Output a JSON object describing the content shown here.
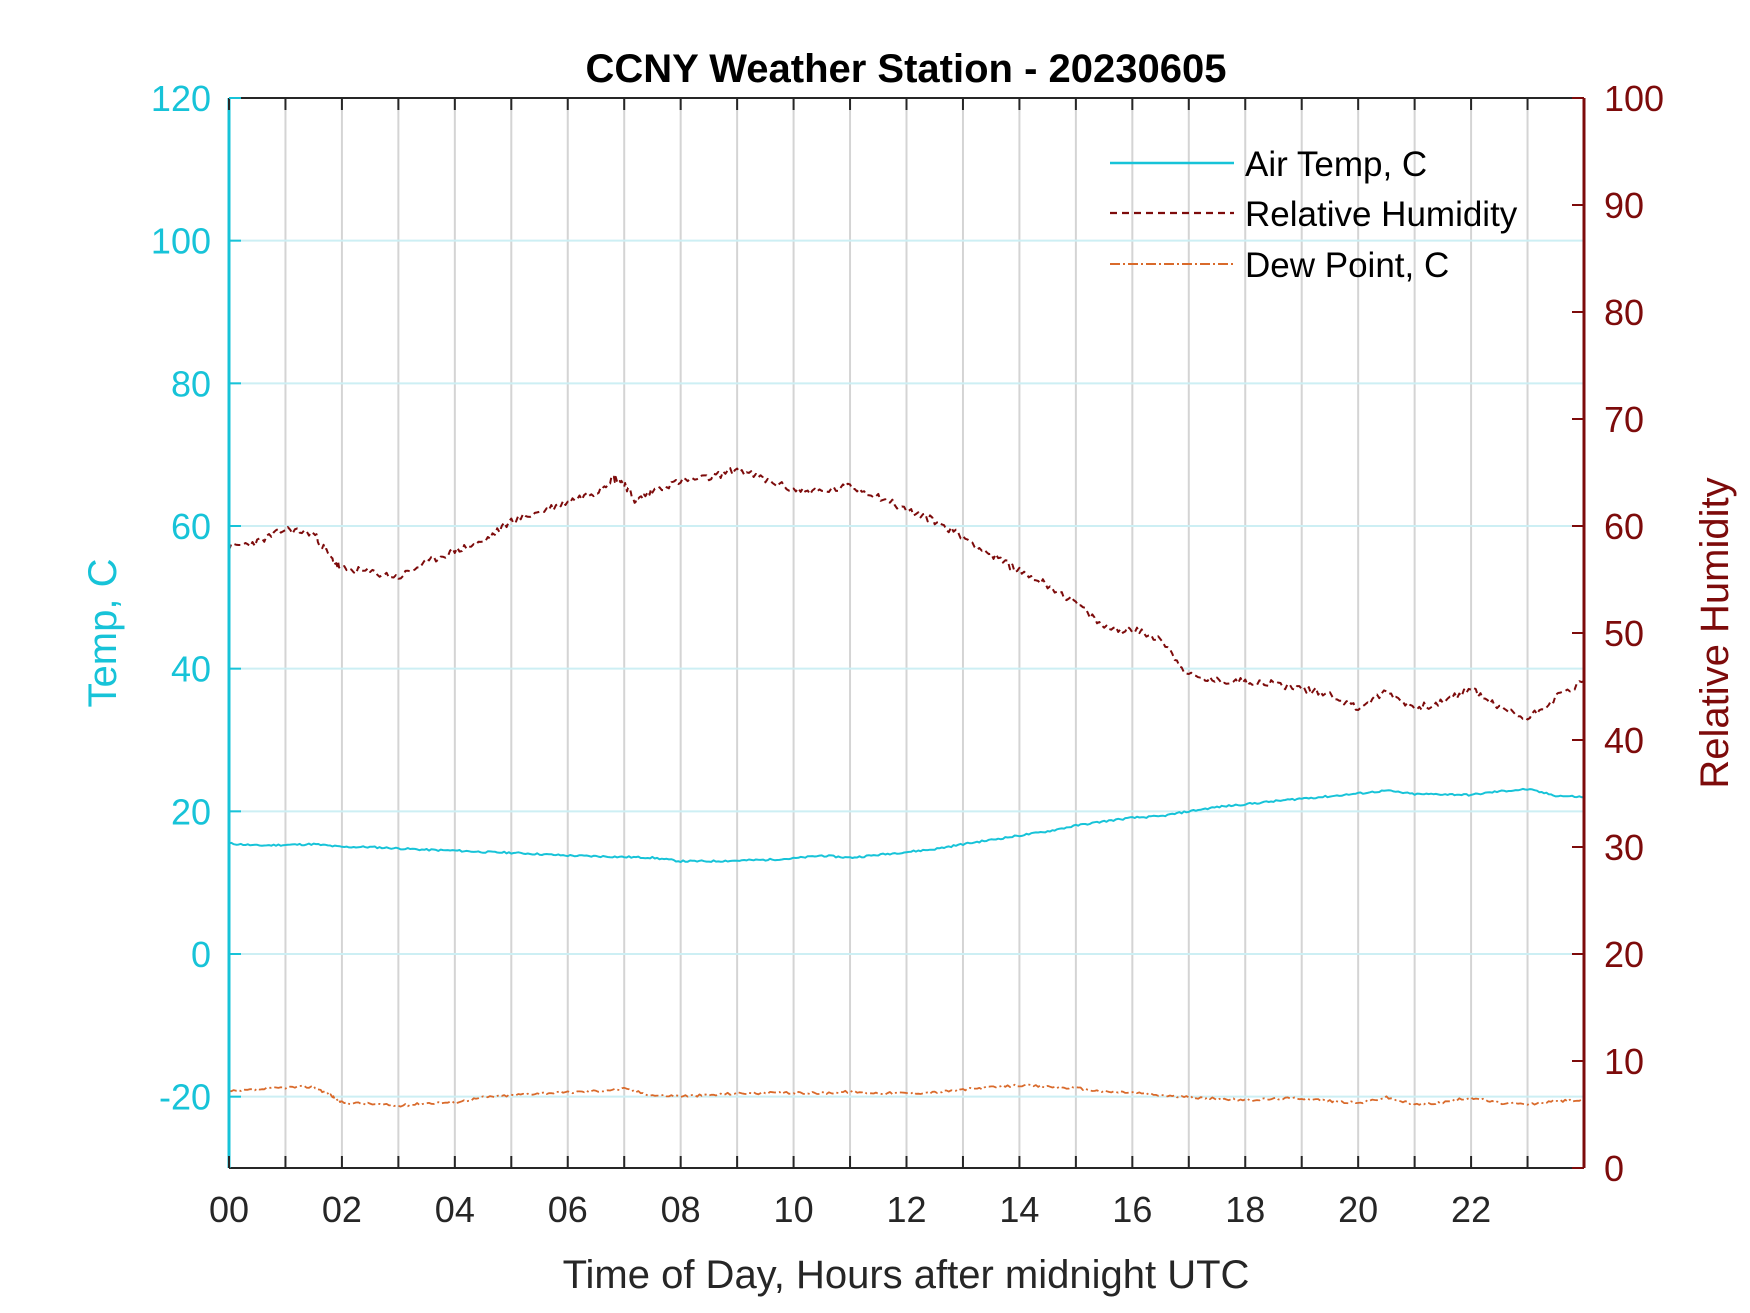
{
  "chart_data": {
    "type": "line",
    "title": "CCNY Weather Station - 20230605",
    "xlabel": "Time of Day, Hours after midnight UTC",
    "ylabel_left": "Temp, C",
    "ylabel_right": "Relative Humidity",
    "xlim": [
      0,
      24
    ],
    "ylim_left": [
      -30,
      120
    ],
    "ylim_right": [
      0,
      100
    ],
    "x_ticks": [
      0,
      2,
      4,
      6,
      8,
      10,
      12,
      14,
      16,
      18,
      20,
      22
    ],
    "x_tick_labels": [
      "00",
      "02",
      "04",
      "06",
      "08",
      "10",
      "12",
      "14",
      "16",
      "18",
      "20",
      "22"
    ],
    "y_left_ticks": [
      -20,
      0,
      20,
      40,
      60,
      80,
      100,
      120
    ],
    "y_left_tick_labels": [
      "-20",
      "0",
      "20",
      "40",
      "60",
      "80",
      "100",
      "120"
    ],
    "y_right_ticks": [
      0,
      10,
      20,
      30,
      40,
      50,
      60,
      70,
      80,
      90,
      100
    ],
    "y_right_tick_labels": [
      "0",
      "10",
      "20",
      "30",
      "40",
      "50",
      "60",
      "70",
      "80",
      "90",
      "100"
    ],
    "grid": "vertical lines every hour, horizontal lines at left-axis ticks",
    "legend_position": "top-right",
    "colors": {
      "left_axis": "#17c3d8",
      "right_axis": "#7d0b0b",
      "air_temp": "#17c3d8",
      "humidity": "#7d0b0b",
      "dew_point": "#d96a2b",
      "grid_vertical": "#d4d4d4",
      "grid_horizontal": "#cdeff4"
    },
    "series": [
      {
        "name": "Air Temp, C",
        "axis": "left",
        "style": "solid",
        "x": [
          0,
          0.5,
          1,
          1.5,
          2,
          2.5,
          3,
          3.5,
          4,
          4.5,
          5,
          5.5,
          6,
          6.5,
          7,
          7.5,
          8,
          8.5,
          9,
          9.5,
          10,
          10.5,
          11,
          11.5,
          12,
          12.5,
          13,
          13.5,
          14,
          14.5,
          15,
          15.5,
          16,
          16.5,
          17,
          17.5,
          18,
          18.5,
          19,
          19.5,
          20,
          20.5,
          21,
          21.5,
          22,
          22.5,
          23,
          23.5,
          24
        ],
        "values": [
          15.5,
          15.2,
          15.3,
          15.4,
          15.0,
          15.0,
          14.8,
          14.6,
          14.5,
          14.3,
          14.2,
          14.0,
          13.8,
          13.7,
          13.6,
          13.5,
          13.0,
          13.0,
          13.1,
          13.2,
          13.4,
          13.8,
          13.5,
          13.9,
          14.3,
          14.7,
          15.4,
          16.0,
          16.6,
          17.2,
          18.0,
          18.6,
          19.1,
          19.3,
          20.0,
          20.6,
          21.0,
          21.4,
          21.8,
          22.1,
          22.5,
          22.9,
          22.4,
          22.4,
          22.3,
          22.8,
          23.1,
          22.2,
          22.0
        ]
      },
      {
        "name": "Relative Humidity",
        "axis": "right",
        "style": "dashed",
        "x": [
          0,
          0.5,
          1,
          1.5,
          1.8,
          2,
          2.5,
          3,
          3.5,
          4,
          4.5,
          5,
          5.5,
          6,
          6.5,
          6.8,
          7,
          7.2,
          7.5,
          8,
          8.5,
          9,
          9.5,
          10,
          10.5,
          11,
          11.5,
          12,
          12.5,
          13,
          13.5,
          14,
          14.5,
          15,
          15.5,
          16,
          16.5,
          17,
          17.5,
          18,
          18.5,
          19,
          19.5,
          20,
          20.5,
          21,
          21.5,
          22,
          22.5,
          23,
          23.5,
          24
        ],
        "values": [
          58.0,
          58.5,
          59.7,
          59.3,
          57.0,
          56.0,
          55.7,
          55.2,
          56.6,
          57.7,
          58.5,
          60.5,
          61.3,
          62.3,
          63.2,
          64.5,
          64.0,
          62.3,
          63.3,
          64.2,
          64.5,
          65.3,
          64.3,
          63.4,
          63.2,
          63.7,
          62.8,
          61.5,
          60.5,
          59.0,
          57.3,
          55.8,
          54.5,
          52.8,
          50.5,
          50.3,
          49.5,
          46.0,
          45.5,
          45.5,
          45.3,
          44.8,
          44.3,
          43.0,
          44.5,
          43.0,
          43.5,
          44.8,
          43.0,
          42.0,
          44.0,
          45.5
        ]
      },
      {
        "name": "Dew Point, C",
        "axis": "left",
        "style": "dash-dot",
        "x": [
          0,
          0.5,
          1,
          1.5,
          1.8,
          2,
          2.5,
          3,
          3.5,
          4,
          4.5,
          5,
          5.5,
          6,
          6.5,
          7,
          7.5,
          8,
          8.5,
          9,
          9.5,
          10,
          10.5,
          11,
          11.5,
          12,
          12.5,
          13,
          13.5,
          14,
          14.5,
          15,
          15.5,
          16,
          16.5,
          17,
          17.5,
          18,
          18.5,
          19,
          19.5,
          20,
          20.5,
          21,
          21.5,
          22,
          22.5,
          23,
          23.5,
          24
        ],
        "values": [
          -19.3,
          -19.0,
          -18.7,
          -18.6,
          -19.8,
          -20.8,
          -21.0,
          -21.3,
          -20.9,
          -20.8,
          -20.1,
          -19.8,
          -19.5,
          -19.4,
          -19.2,
          -18.9,
          -19.8,
          -19.9,
          -19.8,
          -19.5,
          -19.5,
          -19.5,
          -19.5,
          -19.3,
          -19.5,
          -19.5,
          -19.4,
          -19.0,
          -18.7,
          -18.4,
          -18.6,
          -18.8,
          -19.3,
          -19.4,
          -19.8,
          -20.1,
          -20.3,
          -20.5,
          -20.3,
          -20.2,
          -20.6,
          -20.9,
          -20.1,
          -21.1,
          -20.8,
          -20.1,
          -20.9,
          -21.1,
          -20.6,
          -20.5
        ]
      }
    ]
  }
}
